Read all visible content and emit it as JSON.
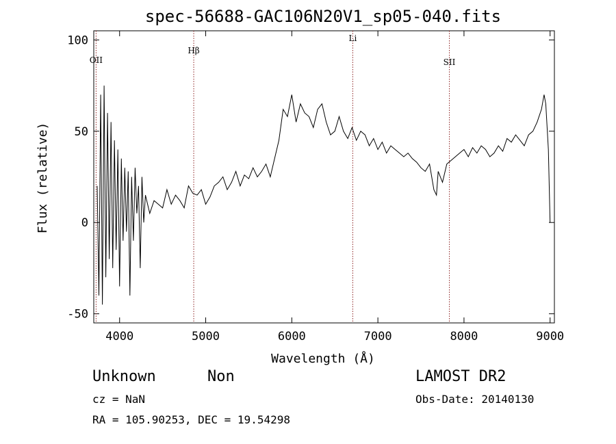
{
  "chart_data": {
    "type": "line",
    "title": "spec-56688-GAC106N20V1_sp05-040.fits",
    "xlabel": "Wavelength (Å)",
    "ylabel": "Flux (relative)",
    "xlim": [
      3700,
      9050
    ],
    "ylim": [
      -55,
      105
    ],
    "xticks": [
      4000,
      5000,
      6000,
      7000,
      8000,
      9000
    ],
    "yticks": [
      -50,
      0,
      50,
      100
    ],
    "grid": false,
    "lines": [
      {
        "label": "OII",
        "x": 3727
      },
      {
        "label": "Hβ",
        "x": 4861
      },
      {
        "label": "Li",
        "x": 6708
      },
      {
        "label": "SII",
        "x": 7830
      }
    ],
    "series": [
      {
        "x": [
          3740,
          3760,
          3780,
          3800,
          3820,
          3840,
          3860,
          3880,
          3900,
          3920,
          3940,
          3960,
          3980,
          4000,
          4020,
          4040,
          4060,
          4080,
          4100,
          4120,
          4140,
          4160,
          4180,
          4200,
          4220,
          4240,
          4260,
          4280,
          4300,
          4350,
          4400,
          4450,
          4500,
          4550,
          4600,
          4650,
          4700,
          4750,
          4800,
          4850,
          4900,
          4950,
          5000,
          5050,
          5100,
          5150,
          5200,
          5250,
          5300,
          5350,
          5400,
          5450,
          5500,
          5550,
          5600,
          5650,
          5700,
          5750,
          5800,
          5850,
          5900,
          5950,
          6000,
          6050,
          6100,
          6150,
          6200,
          6250,
          6300,
          6350,
          6400,
          6450,
          6500,
          6550,
          6600,
          6650,
          6700,
          6750,
          6800,
          6850,
          6900,
          6950,
          7000,
          7050,
          7100,
          7150,
          7200,
          7250,
          7300,
          7350,
          7400,
          7450,
          7500,
          7550,
          7600,
          7650,
          7680,
          7700,
          7750,
          7800,
          7850,
          7900,
          7950,
          8000,
          8050,
          8100,
          8150,
          8200,
          8250,
          8300,
          8350,
          8400,
          8450,
          8500,
          8550,
          8600,
          8650,
          8700,
          8750,
          8800,
          8850,
          8900,
          8930,
          8950,
          8980,
          9000
        ],
        "values": [
          20,
          -40,
          70,
          -45,
          75,
          -30,
          60,
          -20,
          55,
          -25,
          45,
          -15,
          40,
          -35,
          35,
          -10,
          30,
          -5,
          28,
          -40,
          25,
          -10,
          30,
          5,
          20,
          -25,
          25,
          0,
          15,
          5,
          12,
          10,
          8,
          18,
          10,
          15,
          12,
          8,
          20,
          16,
          15,
          18,
          10,
          14,
          20,
          22,
          25,
          18,
          22,
          28,
          20,
          26,
          24,
          30,
          25,
          28,
          32,
          25,
          35,
          45,
          62,
          58,
          70,
          55,
          65,
          60,
          58,
          52,
          62,
          65,
          55,
          48,
          50,
          58,
          50,
          46,
          52,
          45,
          50,
          48,
          42,
          46,
          40,
          44,
          38,
          42,
          40,
          38,
          36,
          38,
          35,
          33,
          30,
          28,
          32,
          18,
          15,
          28,
          22,
          32,
          34,
          36,
          38,
          40,
          36,
          41,
          38,
          42,
          40,
          36,
          38,
          42,
          39,
          46,
          44,
          48,
          45,
          42,
          48,
          50,
          55,
          62,
          70,
          65,
          40,
          0
        ]
      }
    ]
  },
  "info": {
    "object_class": "Unknown",
    "subclass": "Non",
    "survey": "LAMOST DR2",
    "cz": "cz = NaN",
    "obs_date": "Obs-Date: 20140130",
    "coords": "RA = 105.90253, DEC =  19.54298"
  }
}
